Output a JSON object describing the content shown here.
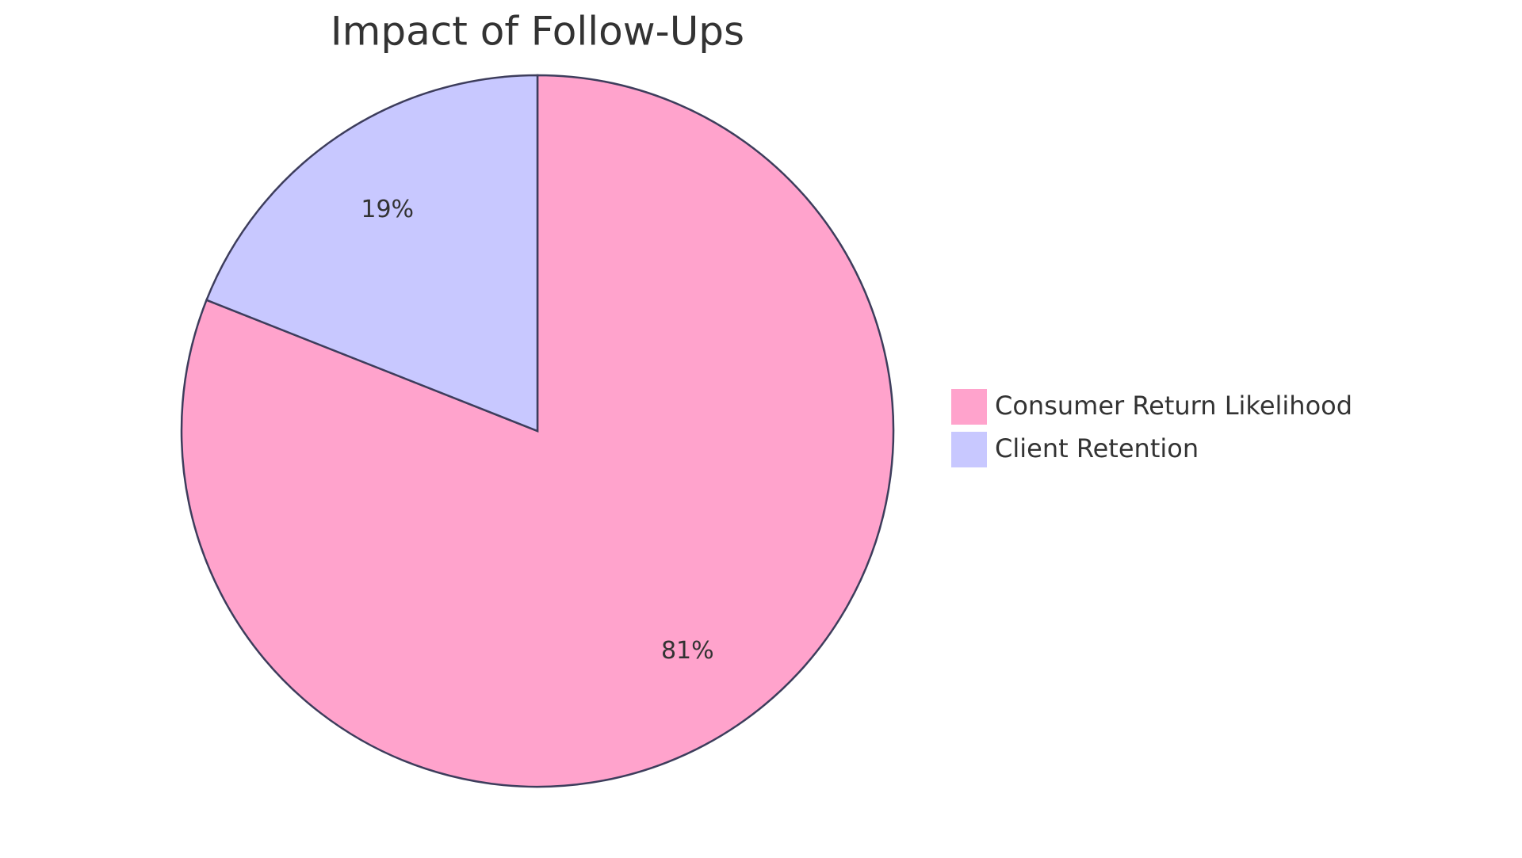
{
  "chart_data": {
    "type": "pie",
    "title": "Impact of Follow-Ups",
    "categories": [
      "Consumer Return Likelihood",
      "Client Retention"
    ],
    "values": [
      81,
      19
    ],
    "value_labels": [
      "81%",
      "19%"
    ],
    "colors": [
      "#ffa3cc",
      "#c8c8ff"
    ],
    "legend": "right"
  }
}
